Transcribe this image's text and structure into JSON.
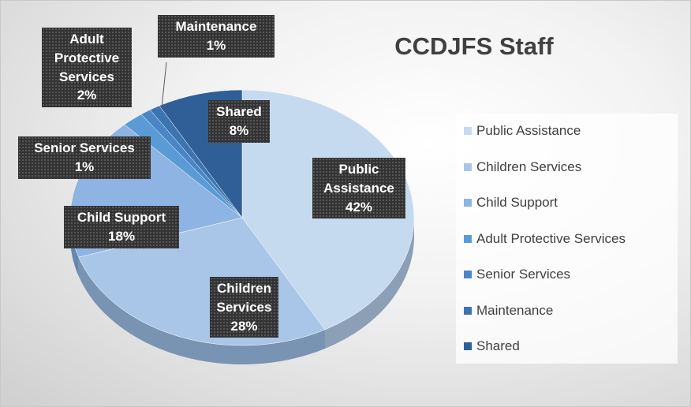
{
  "chart_data": {
    "type": "pie",
    "title": "CCDJFS Staff",
    "categories": [
      "Public Assistance",
      "Children Services",
      "Child Support",
      "Adult Protective Services",
      "Senior Services",
      "Maintenance",
      "Shared"
    ],
    "values": [
      42,
      28,
      18,
      2,
      1,
      1,
      8
    ],
    "value_labels": [
      "42%",
      "28%",
      "18%",
      "2%",
      "1%",
      "1%",
      "8%"
    ],
    "colors": [
      "#c5d9ef",
      "#a9c6e8",
      "#8db4e2",
      "#5b9bd5",
      "#4a86c5",
      "#3c74b0",
      "#2f5f96"
    ],
    "legend": "right"
  }
}
